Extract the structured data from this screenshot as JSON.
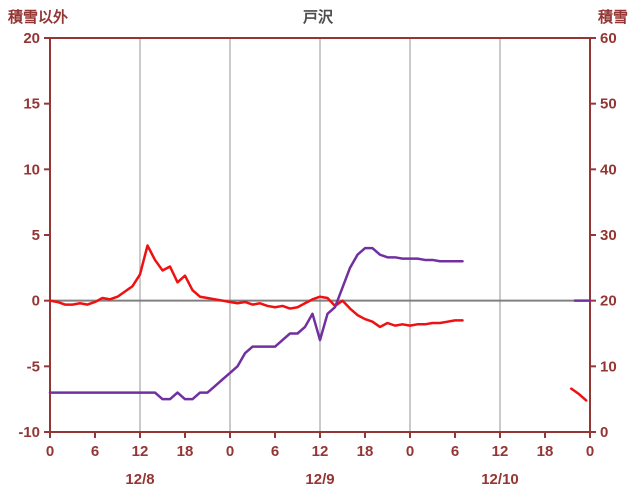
{
  "colors": {
    "background": "#ffffff",
    "frame": "#943634",
    "tick_text": "#943634",
    "title_text": "#4c4c4c",
    "grid": "#a6a6a6",
    "zero_line": "#808080"
  },
  "chart_data": {
    "type": "line",
    "title": "戸沢",
    "legend": "none",
    "grid": "vertical-only-plus-zero-line",
    "left_axis": {
      "label": "積雪以外",
      "min": -10,
      "max": 20,
      "ticks": [
        20,
        15,
        10,
        5,
        0,
        -5,
        -10
      ]
    },
    "right_axis": {
      "label": "積雪",
      "min": 0,
      "max": 60,
      "ticks": [
        60,
        50,
        40,
        30,
        20,
        10,
        0
      ]
    },
    "x_axis": {
      "min": 0,
      "max": 72,
      "tick_step": 6,
      "tick_labels": [
        "0",
        "6",
        "12",
        "18",
        "0",
        "6",
        "12",
        "18",
        "0",
        "6",
        "12",
        "18",
        "0"
      ],
      "date_labels": [
        {
          "label": "12/8",
          "hour": 12
        },
        {
          "label": "12/9",
          "hour": 36
        },
        {
          "label": "12/10",
          "hour": 60
        }
      ],
      "gridline_hours": [
        12,
        24,
        36,
        48,
        60
      ]
    },
    "series": [
      {
        "id": "non-snow-series",
        "name": "積雪以外",
        "axis": "left",
        "color": "#ee1111",
        "width": 2.5,
        "segments": [
          {
            "x": [
              0,
              1,
              2,
              3,
              4,
              5,
              6,
              7,
              8,
              9,
              10,
              11,
              12,
              13,
              14,
              15,
              16,
              17,
              18,
              19,
              20,
              21,
              22,
              23,
              24,
              25,
              26,
              27,
              28,
              29,
              30,
              31,
              32,
              33,
              34,
              35,
              36,
              37,
              38,
              39,
              40,
              41,
              42,
              43,
              44,
              45,
              46,
              47,
              48,
              49,
              50,
              51,
              52,
              53,
              54,
              55
            ],
            "y": [
              0,
              -0.1,
              -0.3,
              -0.3,
              -0.2,
              -0.3,
              -0.1,
              0.2,
              0.1,
              0.3,
              0.7,
              1.1,
              2.0,
              4.2,
              3.1,
              2.3,
              2.6,
              1.4,
              1.9,
              0.8,
              0.3,
              0.2,
              0.1,
              0,
              -0.1,
              -0.2,
              -0.1,
              -0.3,
              -0.2,
              -0.4,
              -0.5,
              -0.4,
              -0.6,
              -0.5,
              -0.2,
              0.1,
              0.3,
              0.2,
              -0.4,
              0,
              -0.6,
              -1.1,
              -1.4,
              -1.6,
              -2.0,
              -1.7,
              -1.9,
              -1.8,
              -1.9,
              -1.8,
              -1.8,
              -1.7,
              -1.7,
              -1.6,
              -1.5,
              -1.5
            ]
          },
          {
            "x": [
              69.5,
              70.5,
              71.5
            ],
            "y": [
              -6.7,
              -7.1,
              -7.6
            ]
          }
        ]
      },
      {
        "id": "snow-depth-series",
        "name": "積雪",
        "axis": "right",
        "color": "#7030a0",
        "width": 2.5,
        "segments": [
          {
            "x": [
              0,
              1,
              2,
              3,
              4,
              5,
              6,
              7,
              8,
              9,
              10,
              11,
              12,
              13,
              14,
              15,
              16,
              17,
              18,
              19,
              20,
              21,
              22,
              23,
              24,
              25,
              26,
              27,
              28,
              29,
              30,
              31,
              32,
              33,
              34,
              35,
              36,
              37,
              38,
              39,
              40,
              41,
              42,
              43,
              44,
              45,
              46,
              47,
              48,
              49,
              50,
              51,
              52,
              53,
              54,
              55
            ],
            "y": [
              6,
              6,
              6,
              6,
              6,
              6,
              6,
              6,
              6,
              6,
              6,
              6,
              6,
              6,
              6,
              5,
              5,
              6,
              5,
              5,
              6,
              6,
              7,
              8,
              9,
              10,
              12,
              13,
              13,
              13,
              13,
              14,
              15,
              15,
              16,
              18,
              14,
              18,
              19,
              22,
              25,
              27,
              28,
              28,
              27,
              26.6,
              26.6,
              26.4,
              26.4,
              26.4,
              26.2,
              26.2,
              26,
              26,
              26,
              26
            ]
          },
          {
            "x": [
              70,
              71,
              72
            ],
            "y": [
              20,
              20,
              20
            ]
          }
        ]
      }
    ]
  }
}
